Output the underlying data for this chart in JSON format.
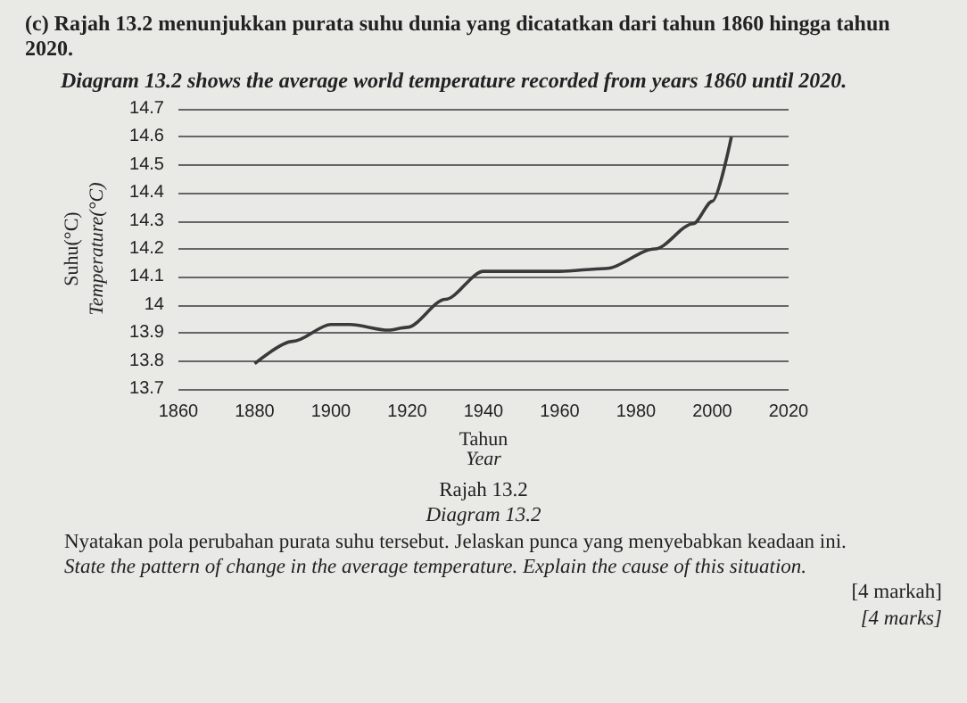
{
  "chart_data": {
    "type": "line",
    "title": "(c) Rajah 13.2 menunjukkan purata suhu dunia yang dicatatkan dari tahun 1860 hingga tahun 2020.",
    "subtitle": "Diagram 13.2 shows the average world temperature recorded from years 1860 until 2020.",
    "xlabel": "Tahun\nYear",
    "ylabel": "Suhu(°C)\nTemperature(°C)",
    "x": [
      1880,
      1890,
      1900,
      1905,
      1915,
      1920,
      1930,
      1940,
      1950,
      1960,
      1972,
      1985,
      1995,
      2000,
      2005
    ],
    "series": [
      {
        "color": "#3a3a3a",
        "values": [
          13.79,
          13.87,
          13.93,
          13.93,
          13.91,
          13.92,
          14.02,
          14.12,
          14.12,
          14.12,
          14.13,
          14.2,
          14.29,
          14.37,
          14.6
        ]
      }
    ],
    "xlim": [
      1860,
      2020
    ],
    "xticks": [
      1860,
      1880,
      1900,
      1920,
      1940,
      1960,
      1980,
      2000,
      2020
    ],
    "ylim": [
      13.7,
      14.7
    ],
    "yticks": [
      13.7,
      13.8,
      13.9,
      14,
      14.1,
      14.2,
      14.3,
      14.4,
      14.5,
      14.6,
      14.7
    ],
    "grid": "y",
    "marker": "none",
    "line_style": "solid",
    "annotations": [
      "Rajah 13.2",
      "Diagram 13.2",
      "Nyatakan pola perubahan purata suhu tersebut. Jelaskan punca yang menyebabkan keadaan ini.",
      "State the pattern of change in the average temperature. Explain the cause of this situation.",
      "[4 markah]",
      "[4 marks]"
    ]
  }
}
